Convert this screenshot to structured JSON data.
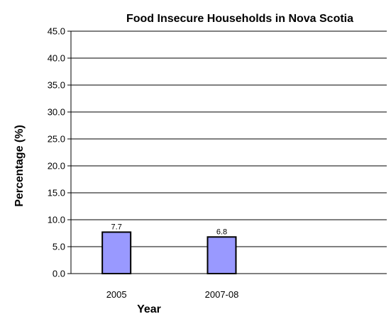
{
  "chart_data": {
    "type": "bar",
    "title": "Food Insecure Households in Nova Scotia",
    "xlabel": "Year",
    "ylabel": "Percentage (%)",
    "categories": [
      "2005",
      "2007-08"
    ],
    "values": [
      7.7,
      6.8
    ],
    "data_labels": [
      "7.7",
      "6.8"
    ],
    "ylim": [
      0,
      45
    ],
    "y_ticks": [
      "0.0",
      "5.0",
      "10.0",
      "15.0",
      "20.0",
      "25.0",
      "30.0",
      "35.0",
      "40.0",
      "45.0"
    ],
    "grid": true,
    "bar_color": "#9999ff",
    "bar_edge_color": "#000000",
    "grid_color": "#000000"
  }
}
